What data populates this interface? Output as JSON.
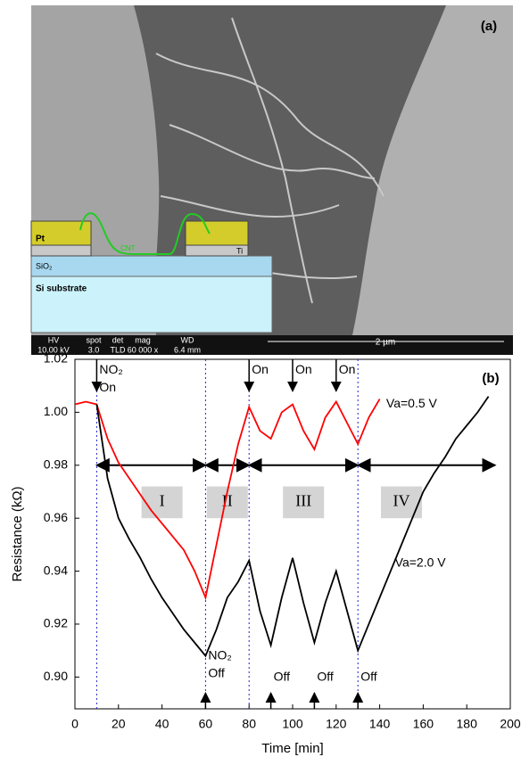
{
  "panel_a": {
    "label": "(a)",
    "inset": {
      "pt": "Pt",
      "cnt": "CNT",
      "ti": "Ti",
      "sio2": "SiO₂",
      "substrate": "Si substrate"
    },
    "info_bar": {
      "fields": [
        {
          "name": "HV",
          "value": "10.00 kV"
        },
        {
          "name": "spot",
          "value": "3.0"
        },
        {
          "name": "det",
          "value": "TLD"
        },
        {
          "name": "mag",
          "value": "60 000 x"
        },
        {
          "name": "WD",
          "value": "6.4 mm"
        }
      ],
      "scale": "2 µm"
    }
  },
  "chart_data": {
    "type": "line",
    "panel_label": "(b)",
    "x_label": "Time [min]",
    "y_label": "Resistance (kΩ)",
    "x": [
      0,
      5,
      10,
      15,
      20,
      25,
      30,
      35,
      40,
      45,
      50,
      55,
      60,
      65,
      70,
      75,
      80,
      85,
      90,
      95,
      100,
      105,
      110,
      115,
      120,
      125,
      130,
      135,
      140,
      145,
      150,
      155,
      160,
      165,
      170,
      175,
      180,
      185,
      190
    ],
    "series": [
      {
        "name": "Va=0.5 V",
        "color": "#ff0000",
        "values": [
          1.003,
          1.004,
          1.003,
          0.99,
          0.981,
          0.975,
          0.969,
          0.963,
          0.958,
          0.953,
          0.948,
          0.94,
          0.93,
          0.95,
          0.97,
          0.988,
          1.002,
          0.993,
          0.99,
          1.0,
          1.003,
          0.993,
          0.986,
          0.998,
          1.004,
          0.996,
          0.988,
          0.998,
          1.005,
          null,
          null,
          null,
          null,
          null,
          null,
          null,
          null,
          null,
          null
        ]
      },
      {
        "name": "Va=2.0 V",
        "color": "#000000",
        "values": [
          null,
          null,
          1.003,
          0.975,
          0.96,
          0.952,
          0.945,
          0.937,
          0.93,
          0.924,
          0.918,
          0.913,
          0.908,
          0.918,
          0.93,
          0.936,
          0.944,
          0.925,
          0.912,
          0.93,
          0.945,
          0.928,
          0.913,
          0.928,
          0.94,
          0.925,
          0.91,
          0.92,
          0.93,
          0.94,
          0.95,
          0.96,
          0.97,
          0.977,
          0.983,
          0.99,
          0.995,
          1.0,
          1.006
        ]
      }
    ],
    "xlim": [
      0,
      200
    ],
    "xticks": [
      0,
      20,
      40,
      60,
      80,
      100,
      120,
      140,
      160,
      180,
      200
    ],
    "ylim": [
      0.888,
      1.02
    ],
    "yticks": [
      {
        "value": 0.9,
        "label": "0.90"
      },
      0.92,
      0.94,
      0.96,
      0.98,
      {
        "value": 1,
        "label": "1.00"
      },
      1.02
    ],
    "boundaries": [
      10,
      60,
      80,
      130
    ],
    "phase_level": 0.98,
    "phases": [
      {
        "label": "I",
        "start": 10,
        "end": 60
      },
      {
        "label": "II",
        "start": 60,
        "end": 80
      },
      {
        "label": "III",
        "start": 80,
        "end": 130
      },
      {
        "label": "IV",
        "start": 130,
        "end": 193
      }
    ],
    "events": [
      {
        "time": 10,
        "lines": [
          "NO₂",
          "On"
        ],
        "side": "top"
      },
      {
        "time": 80,
        "lines": [
          "On"
        ],
        "side": "top"
      },
      {
        "time": 100,
        "lines": [
          "On"
        ],
        "side": "top"
      },
      {
        "time": 120,
        "lines": [
          "On"
        ],
        "side": "top"
      },
      {
        "time": 60,
        "lines": [
          "NO₂",
          "Off"
        ],
        "side": "bottom"
      },
      {
        "time": 90,
        "lines": [
          "Off"
        ],
        "side": "bottom"
      },
      {
        "time": 110,
        "lines": [
          "Off"
        ],
        "side": "bottom"
      },
      {
        "time": 130,
        "lines": [
          "Off"
        ],
        "side": "bottom"
      }
    ]
  }
}
